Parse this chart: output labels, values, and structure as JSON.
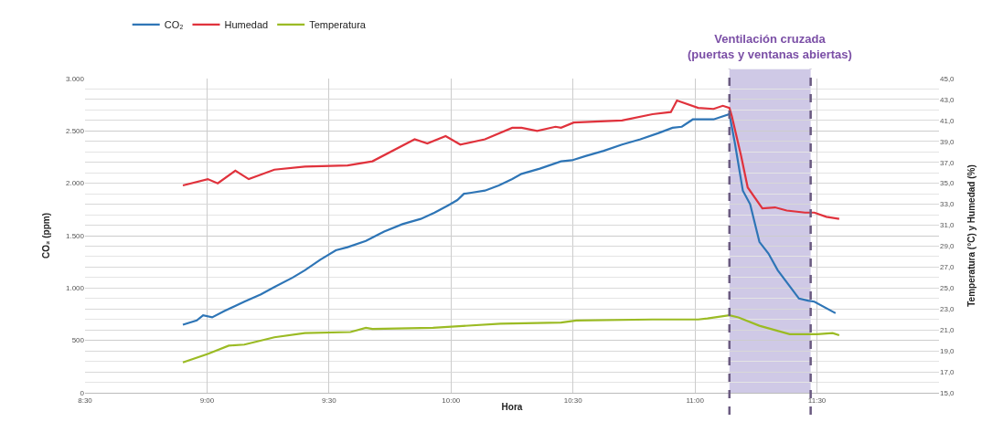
{
  "chart_data": {
    "type": "line",
    "xlabel": "Hora",
    "ylabel": "CO₂ (ppm)",
    "y2label": "Temperatura (°C) y Humedad (%)",
    "series": [
      {
        "name": "CO₂",
        "color": "#2e75b6",
        "x": [
          8.901,
          8.958,
          8.984,
          9.021,
          9.071,
          9.153,
          9.221,
          9.276,
          9.351,
          9.401,
          9.464,
          9.528,
          9.576,
          9.651,
          9.726,
          9.801,
          9.876,
          9.933,
          9.989,
          10.026,
          10.053,
          10.083,
          10.139,
          10.196,
          10.251,
          10.289,
          10.364,
          10.451,
          10.496,
          10.551,
          10.626,
          10.701,
          10.776,
          10.851,
          10.908,
          10.946,
          10.991,
          11.076,
          11.141,
          11.163,
          11.196,
          11.226,
          11.264,
          11.301,
          11.339,
          11.384,
          11.426,
          11.463,
          11.489,
          11.576
        ],
        "values": [
          650,
          690,
          740,
          720,
          780,
          870,
          940,
          1010,
          1100,
          1170,
          1270,
          1360,
          1390,
          1450,
          1540,
          1610,
          1660,
          1720,
          1790,
          1840,
          1900,
          1910,
          1930,
          1980,
          2040,
          2090,
          2140,
          2210,
          2220,
          2260,
          2310,
          2370,
          2420,
          2480,
          2530,
          2540,
          2610,
          2610,
          2660,
          2390,
          1930,
          1800,
          1440,
          1330,
          1170,
          1030,
          900,
          880,
          870,
          760
        ]
      },
      {
        "name": "Humedad",
        "color": "#e0323c",
        "axis": "y2",
        "x": [
          8.901,
          9.003,
          9.044,
          9.116,
          9.171,
          9.276,
          9.401,
          9.576,
          9.678,
          9.851,
          9.903,
          9.978,
          10.038,
          10.139,
          10.251,
          10.289,
          10.353,
          10.428,
          10.451,
          10.503,
          10.701,
          10.826,
          10.901,
          10.926,
          11.013,
          11.076,
          11.114,
          11.141,
          11.151,
          11.189,
          11.216,
          11.276,
          11.328,
          11.376,
          11.451,
          11.489,
          11.538,
          11.591
        ],
        "values": [
          34.8,
          35.4,
          35.0,
          36.2,
          35.4,
          36.3,
          36.6,
          36.7,
          37.1,
          39.2,
          38.8,
          39.5,
          38.7,
          39.2,
          40.3,
          40.3,
          40.0,
          40.4,
          40.3,
          40.8,
          41.0,
          41.6,
          41.8,
          42.9,
          42.2,
          42.1,
          42.4,
          42.2,
          41.4,
          37.6,
          34.6,
          32.6,
          32.7,
          32.4,
          32.2,
          32.2,
          31.8,
          31.6
        ]
      },
      {
        "name": "Temperatura",
        "color": "#9bbb24",
        "axis": "y2",
        "x": [
          8.901,
          9.003,
          9.089,
          9.153,
          9.276,
          9.401,
          9.588,
          9.651,
          9.678,
          9.926,
          10.203,
          10.451,
          10.514,
          10.826,
          11.013,
          11.051,
          11.141,
          11.178,
          11.264,
          11.388,
          11.451,
          11.501,
          11.564,
          11.591
        ],
        "values": [
          17.9,
          18.7,
          19.5,
          19.6,
          20.3,
          20.7,
          20.8,
          21.2,
          21.1,
          21.2,
          21.6,
          21.7,
          21.9,
          22.0,
          22.0,
          22.1,
          22.4,
          22.2,
          21.4,
          20.6,
          20.6,
          20.6,
          20.7,
          20.5
        ]
      }
    ],
    "bands": [
      {
        "axis": "x",
        "from": 11.141,
        "to": 11.474,
        "label": "Ventilación cruzada\n(puertas y ventanas abiertas)",
        "color": "#cfc9e6"
      }
    ],
    "ref_lines": [
      {
        "axis": "x",
        "value": 11.141,
        "color": "#6a5a80",
        "line_style": "dashed"
      },
      {
        "axis": "x",
        "value": 11.474,
        "color": "#6a5a80",
        "line_style": "dashed"
      }
    ],
    "xlim": [
      8.5,
      12.0
    ],
    "xticks": [
      {
        "value": 8.5,
        "label": "8:30"
      },
      {
        "value": 9.0,
        "label": "9:00"
      },
      {
        "value": 9.5,
        "label": "9:30"
      },
      {
        "value": 10.0,
        "label": "10:00"
      },
      {
        "value": 10.5,
        "label": "10:30"
      },
      {
        "value": 11.0,
        "label": "11:00"
      },
      {
        "value": 11.5,
        "label": "11:30"
      }
    ],
    "ylim": [
      0,
      3000
    ],
    "yticks": [
      0,
      {
        "value": 500,
        "label": "500"
      },
      {
        "value": 1000,
        "label": "1.000"
      },
      {
        "value": 1500,
        "label": "1.500"
      },
      {
        "value": 2000,
        "label": "2.000"
      },
      {
        "value": 2500,
        "label": "2.500"
      },
      {
        "value": 3000,
        "label": "3.000"
      }
    ],
    "y2lim": [
      15,
      45
    ],
    "y2ticks": [
      {
        "value": 15,
        "label": "15,0"
      },
      {
        "value": 17,
        "label": "17,0"
      },
      {
        "value": 19,
        "label": "19,0"
      },
      {
        "value": 21,
        "label": "21,0"
      },
      {
        "value": 23,
        "label": "23,0"
      },
      {
        "value": 25,
        "label": "25,0"
      },
      {
        "value": 27,
        "label": "27,0"
      },
      {
        "value": 29,
        "label": "29,0"
      },
      {
        "value": 31,
        "label": "31,0"
      },
      {
        "value": 33,
        "label": "33,0"
      },
      {
        "value": 35,
        "label": "35,0"
      },
      {
        "value": 37,
        "label": "37,0"
      },
      {
        "value": 39,
        "label": "39,0"
      },
      {
        "value": 41,
        "label": "41,0"
      },
      {
        "value": 43,
        "label": "43,0"
      },
      {
        "value": 45,
        "label": "45,0"
      }
    ],
    "grid": true,
    "legend": "top left",
    "marker": "none",
    "line_style": "solid"
  }
}
